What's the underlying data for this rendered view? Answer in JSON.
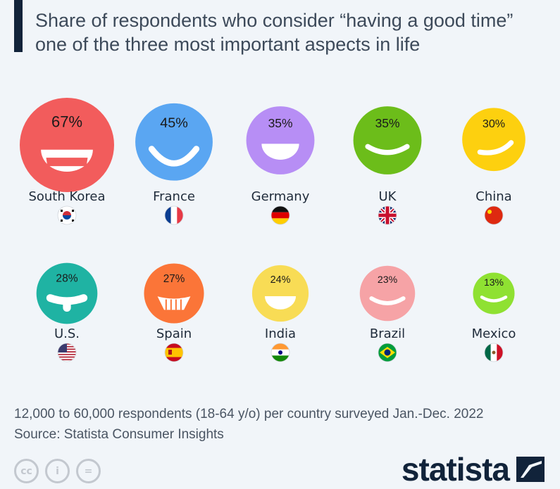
{
  "title_lines": [
    "Share of respondents who consider “having a good time”",
    "one of the three most important aspects in life"
  ],
  "chart_data": {
    "type": "bubble-pictogram",
    "title": "Share of respondents who consider “having a good time” one of the three most important aspects in life",
    "unit": "%",
    "categories": [
      "South Korea",
      "France",
      "Germany",
      "UK",
      "China",
      "U.S.",
      "Spain",
      "India",
      "Brazil",
      "Mexico"
    ],
    "values": [
      67,
      45,
      35,
      35,
      30,
      28,
      27,
      24,
      23,
      13
    ],
    "labels": [
      "67%",
      "45%",
      "35%",
      "35%",
      "30%",
      "28%",
      "27%",
      "24%",
      "23%",
      "13%"
    ],
    "colors": [
      "#f25c5c",
      "#5aa6f2",
      "#b78ef5",
      "#6cbd1a",
      "#fdd00f",
      "#1fb3a3",
      "#fb7538",
      "#f8dc55",
      "#f6a3a6",
      "#8fe132"
    ],
    "faces": [
      "wide-grin",
      "big-smile",
      "open-mouth",
      "smile",
      "tilted-smile",
      "tongue",
      "teeth",
      "open-mouth",
      "smile",
      "smile"
    ],
    "flags": [
      "kr-flag",
      "fr-flag",
      "de-flag",
      "uk-flag",
      "cn-flag",
      "us-flag",
      "es-flag",
      "in-flag",
      "br-flag",
      "mx-flag"
    ],
    "layout": "2 rows of 5"
  },
  "footer": {
    "note": "12,000 to 60,000 respondents (18-64 y/o) per country surveyed Jan.-Dec. 2022",
    "source": "Source: Statista Consumer Insights"
  },
  "license_icons": [
    "cc",
    "i",
    "="
  ],
  "brand": "statista"
}
